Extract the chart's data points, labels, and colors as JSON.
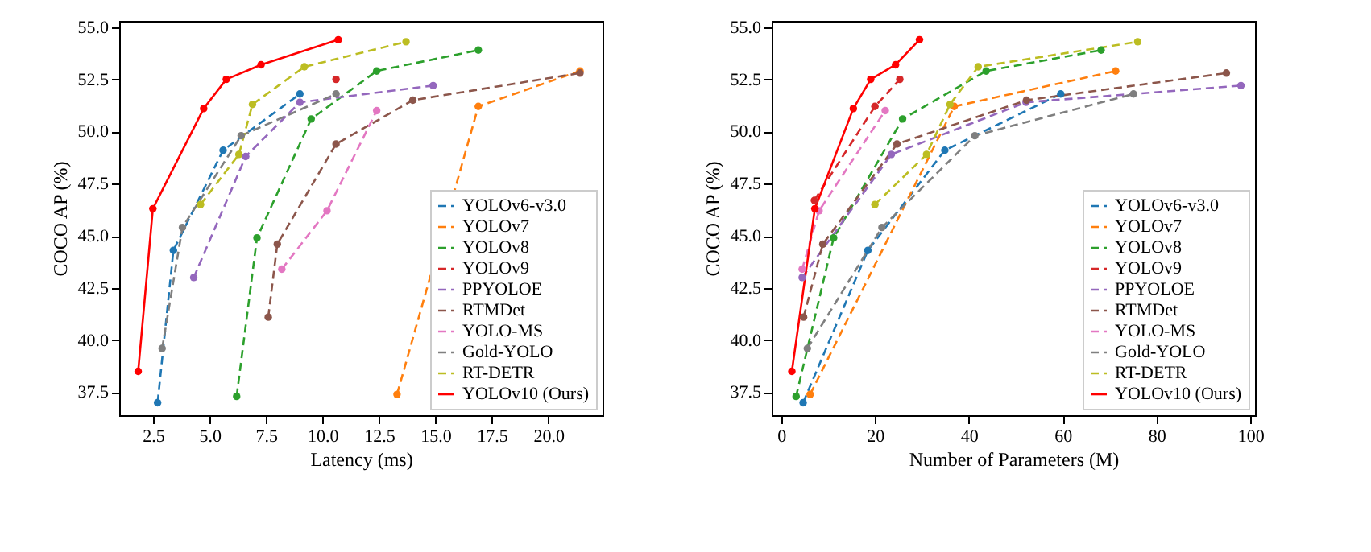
{
  "chart_data": [
    {
      "type": "line",
      "xlabel": "Latency (ms)",
      "ylabel": "COCO AP (%)",
      "xlim": [
        1.0,
        22.4
      ],
      "ylim": [
        36.4,
        55.3
      ],
      "xticks": [
        {
          "value": 2.5,
          "label": "2.5"
        },
        {
          "value": 5,
          "label": "5.0"
        },
        {
          "value": 7.5,
          "label": "7.5"
        },
        {
          "value": 10,
          "label": "10.0"
        },
        {
          "value": 12.5,
          "label": "12.5"
        },
        {
          "value": 15,
          "label": "15.0"
        },
        {
          "value": 17.5,
          "label": "17.5"
        },
        {
          "value": 20,
          "label": "20.0"
        }
      ],
      "yticks": [
        37.5,
        {
          "value": 40,
          "label": "40.0"
        },
        42.5,
        {
          "value": 45,
          "label": "45.0"
        },
        47.5,
        {
          "value": 50,
          "label": "50.0"
        },
        52.5,
        {
          "value": 55,
          "label": "55.0"
        }
      ],
      "grid": false,
      "legend": "bottom right",
      "marker": "circle",
      "series": [
        {
          "name": "YOLOv6-v3.0",
          "color": "#1f77b4",
          "line_style": "dashed",
          "x": [
            2.7,
            3.4,
            5.6,
            9.0
          ],
          "values": [
            37.0,
            44.3,
            49.1,
            51.8
          ]
        },
        {
          "name": "YOLOv7",
          "color": "#ff7f0e",
          "line_style": "dashed",
          "x": [
            13.3,
            16.9,
            21.4
          ],
          "values": [
            37.4,
            51.2,
            52.9
          ]
        },
        {
          "name": "YOLOv8",
          "color": "#2ca02c",
          "line_style": "dashed",
          "x": [
            6.2,
            7.1,
            9.5,
            12.4,
            16.9
          ],
          "values": [
            37.3,
            44.9,
            50.6,
            52.9,
            53.9
          ]
        },
        {
          "name": "YOLOv9",
          "color": "#d62728",
          "line_style": "dashed",
          "x": [
            10.6
          ],
          "values": [
            52.5
          ]
        },
        {
          "name": "PPYOLOE",
          "color": "#9467bd",
          "line_style": "dashed",
          "x": [
            4.3,
            6.6,
            9.0,
            14.9
          ],
          "values": [
            43.0,
            48.8,
            51.4,
            52.2
          ]
        },
        {
          "name": "RTMDet",
          "color": "#8c564b",
          "line_style": "dashed",
          "x": [
            7.6,
            8.0,
            10.6,
            14.0,
            21.4
          ],
          "values": [
            41.1,
            44.6,
            49.4,
            51.5,
            52.8
          ]
        },
        {
          "name": "YOLO-MS",
          "color": "#e377c2",
          "line_style": "dashed",
          "x": [
            8.2,
            10.2,
            12.4
          ],
          "values": [
            43.4,
            46.2,
            51.0
          ]
        },
        {
          "name": "Gold-YOLO",
          "color": "#7f7f7f",
          "line_style": "dashed",
          "x": [
            2.9,
            3.8,
            6.4,
            10.6
          ],
          "values": [
            39.6,
            45.4,
            49.8,
            51.8
          ]
        },
        {
          "name": "RT-DETR",
          "color": "#bcbd22",
          "line_style": "dashed",
          "x": [
            4.6,
            6.3,
            6.9,
            9.2,
            13.7
          ],
          "values": [
            46.5,
            48.9,
            51.3,
            53.1,
            54.3
          ]
        },
        {
          "name": "YOLOv10 (Ours)",
          "color": "#ff0000",
          "line_style": "solid",
          "x": [
            1.84,
            2.49,
            4.74,
            5.74,
            7.28,
            10.7
          ],
          "values": [
            38.5,
            46.3,
            51.1,
            52.5,
            53.2,
            54.4
          ]
        }
      ]
    },
    {
      "type": "line",
      "xlabel": "Number of Parameters (M)",
      "ylabel": "COCO AP (%)",
      "xlim": [
        -2,
        101
      ],
      "ylim": [
        36.4,
        55.3
      ],
      "xticks": [
        0,
        20,
        40,
        60,
        80,
        100
      ],
      "yticks": [
        37.5,
        {
          "value": 40,
          "label": "40.0"
        },
        42.5,
        {
          "value": 45,
          "label": "45.0"
        },
        47.5,
        {
          "value": 50,
          "label": "50.0"
        },
        52.5,
        {
          "value": 55,
          "label": "55.0"
        }
      ],
      "grid": false,
      "legend": "bottom right",
      "marker": "circle",
      "series": [
        {
          "name": "YOLOv6-v3.0",
          "color": "#1f77b4",
          "line_style": "dashed",
          "x": [
            4.7,
            18.5,
            34.9,
            59.6
          ],
          "values": [
            37.0,
            44.3,
            49.1,
            51.8
          ]
        },
        {
          "name": "YOLOv7",
          "color": "#ff7f0e",
          "line_style": "dashed",
          "x": [
            6.2,
            36.9,
            71.3
          ],
          "values": [
            37.4,
            51.2,
            52.9
          ]
        },
        {
          "name": "YOLOv8",
          "color": "#2ca02c",
          "line_style": "dashed",
          "x": [
            3.2,
            11.2,
            25.9,
            43.7,
            68.2
          ],
          "values": [
            37.3,
            44.9,
            50.6,
            52.9,
            53.9
          ]
        },
        {
          "name": "YOLOv9",
          "color": "#d62728",
          "line_style": "dashed",
          "x": [
            7.1,
            20.0,
            25.3
          ],
          "values": [
            46.7,
            51.2,
            52.5
          ]
        },
        {
          "name": "PPYOLOE",
          "color": "#9467bd",
          "line_style": "dashed",
          "x": [
            4.5,
            23.5,
            52.2,
            98.0
          ],
          "values": [
            43.0,
            48.9,
            51.4,
            52.2
          ]
        },
        {
          "name": "RTMDet",
          "color": "#8c564b",
          "line_style": "dashed",
          "x": [
            4.8,
            8.9,
            24.7,
            52.3,
            94.9
          ],
          "values": [
            41.1,
            44.6,
            49.4,
            51.5,
            52.8
          ]
        },
        {
          "name": "YOLO-MS",
          "color": "#e377c2",
          "line_style": "dashed",
          "x": [
            4.5,
            8.1,
            22.2
          ],
          "values": [
            43.4,
            46.2,
            51.0
          ]
        },
        {
          "name": "Gold-YOLO",
          "color": "#7f7f7f",
          "line_style": "dashed",
          "x": [
            5.6,
            21.5,
            41.3,
            75.1
          ],
          "values": [
            39.6,
            45.4,
            49.8,
            51.8
          ]
        },
        {
          "name": "RT-DETR",
          "color": "#bcbd22",
          "line_style": "dashed",
          "x": [
            20,
            31,
            36,
            42,
            76
          ],
          "values": [
            46.5,
            48.9,
            51.3,
            53.1,
            54.3
          ]
        },
        {
          "name": "YOLOv10 (Ours)",
          "color": "#ff0000",
          "line_style": "solid",
          "x": [
            2.3,
            7.2,
            15.4,
            19.1,
            24.4,
            29.5
          ],
          "values": [
            38.5,
            46.3,
            51.1,
            52.5,
            53.2,
            54.4
          ]
        }
      ]
    }
  ]
}
